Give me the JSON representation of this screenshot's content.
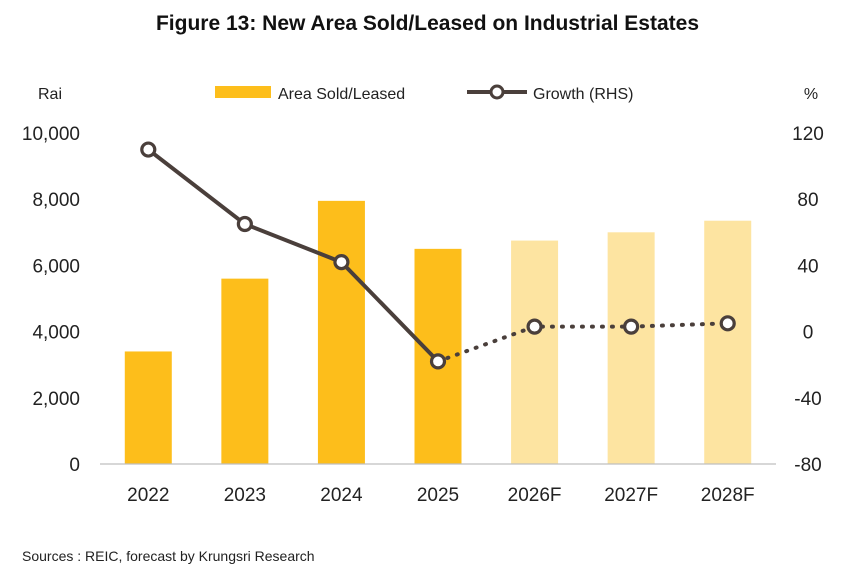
{
  "title": "Figure 13: New Area Sold/Leased on Industrial Estates",
  "source": "Sources : REIC, forecast by Krungsri Research",
  "chart_data": {
    "type": "bar",
    "categories": [
      "2022",
      "2023",
      "2024",
      "2025",
      "2026F",
      "2027F",
      "2028F"
    ],
    "series": [
      {
        "name": "Area Sold/Leased",
        "axis": "left",
        "type": "bar",
        "values": [
          3400,
          5600,
          7950,
          6500,
          6750,
          7000,
          7350
        ],
        "color": "#FDBE1B",
        "forecast_color": "#FDE4A1"
      },
      {
        "name": "Growth (RHS)",
        "axis": "right",
        "type": "line",
        "values": [
          110,
          65,
          42,
          -18,
          3,
          3,
          5
        ],
        "color": "#4A3F3B"
      }
    ],
    "forecast_from": "2026F",
    "ylabel": "Rai",
    "y2label": "%",
    "ylim": [
      0,
      10000
    ],
    "yticks": [
      "0",
      "2,000",
      "4,000",
      "6,000",
      "8,000",
      "10,000"
    ],
    "y2lim": [
      -80,
      120
    ],
    "y2ticks": [
      "-80",
      "-40",
      "0",
      "40",
      "80",
      "120"
    ],
    "grid": false,
    "legend_position": "top"
  }
}
